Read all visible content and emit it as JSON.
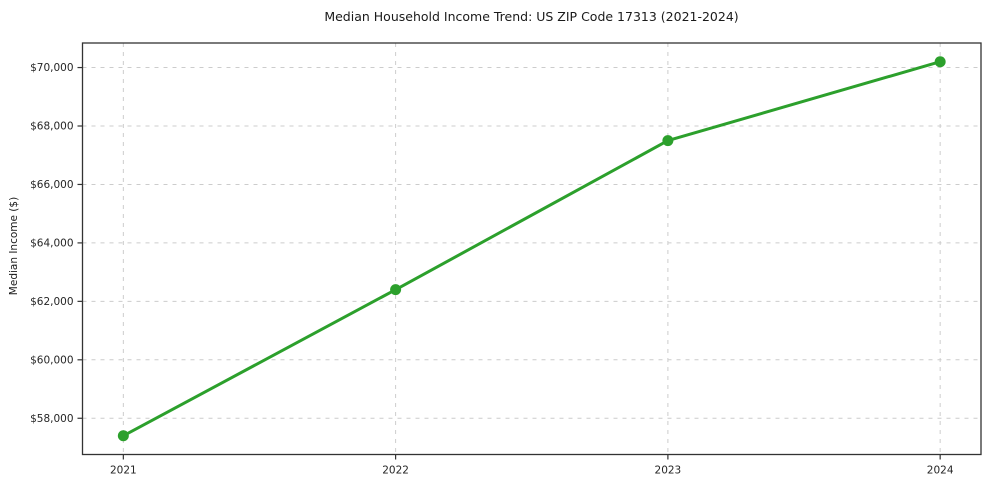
{
  "chart_data": {
    "type": "line",
    "title": "Median Household Income Trend: US ZIP Code 17313 (2021-2024)",
    "xlabel": "",
    "ylabel": "Median Income ($)",
    "x": [
      2021,
      2022,
      2023,
      2024
    ],
    "series": [
      {
        "name": "Median household income",
        "values": [
          57400,
          62400,
          67500,
          70200
        ]
      }
    ],
    "xtick_labels": [
      "2021",
      "2022",
      "2023",
      "2024"
    ],
    "ytick_values": [
      58000,
      60000,
      62000,
      64000,
      66000,
      68000,
      70000
    ],
    "ytick_labels": [
      "$58,000",
      "$60,000",
      "$62,000",
      "$64,000",
      "$66,000",
      "$68,000",
      "$70,000"
    ],
    "xlim": [
      2020.85,
      2024.15
    ],
    "ylim": [
      56760,
      70840
    ],
    "grid": true,
    "grid_style": "dashed",
    "legend": null,
    "marker": "circle",
    "colors": {
      "line": "#2ca02c",
      "marker": "#2ca02c",
      "grid": "#cccccc",
      "spine": "#333333",
      "tick": "#333333",
      "text": "#262626",
      "background": "#ffffff"
    }
  }
}
